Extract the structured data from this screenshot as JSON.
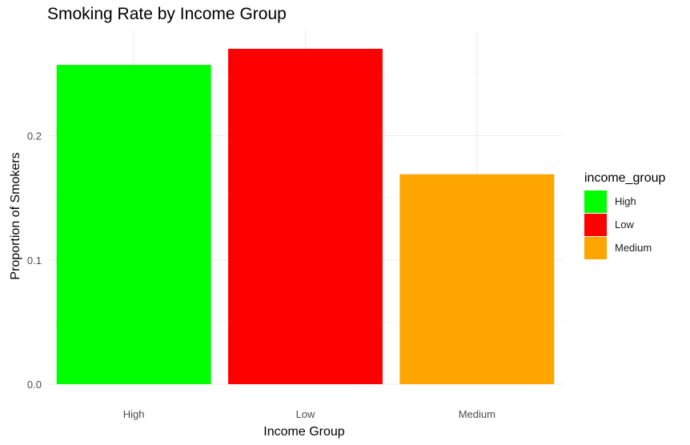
{
  "chart_data": {
    "type": "bar",
    "title": "Smoking Rate by Income Group",
    "xlabel": "Income Group",
    "ylabel": "Proportion of Smokers",
    "categories": [
      "High",
      "Low",
      "Medium"
    ],
    "values": [
      0.257,
      0.27,
      0.169
    ],
    "colors": [
      "#00ff00",
      "#ff0000",
      "#ffa500"
    ],
    "ylim": [
      0,
      0.28
    ],
    "yticks": [
      0.0,
      0.1,
      0.2
    ],
    "ytick_labels": [
      "0.0",
      "0.1",
      "0.2"
    ],
    "grid": true,
    "legend": {
      "title": "income_group",
      "position": "right",
      "entries": [
        "High",
        "Low",
        "Medium"
      ]
    }
  }
}
